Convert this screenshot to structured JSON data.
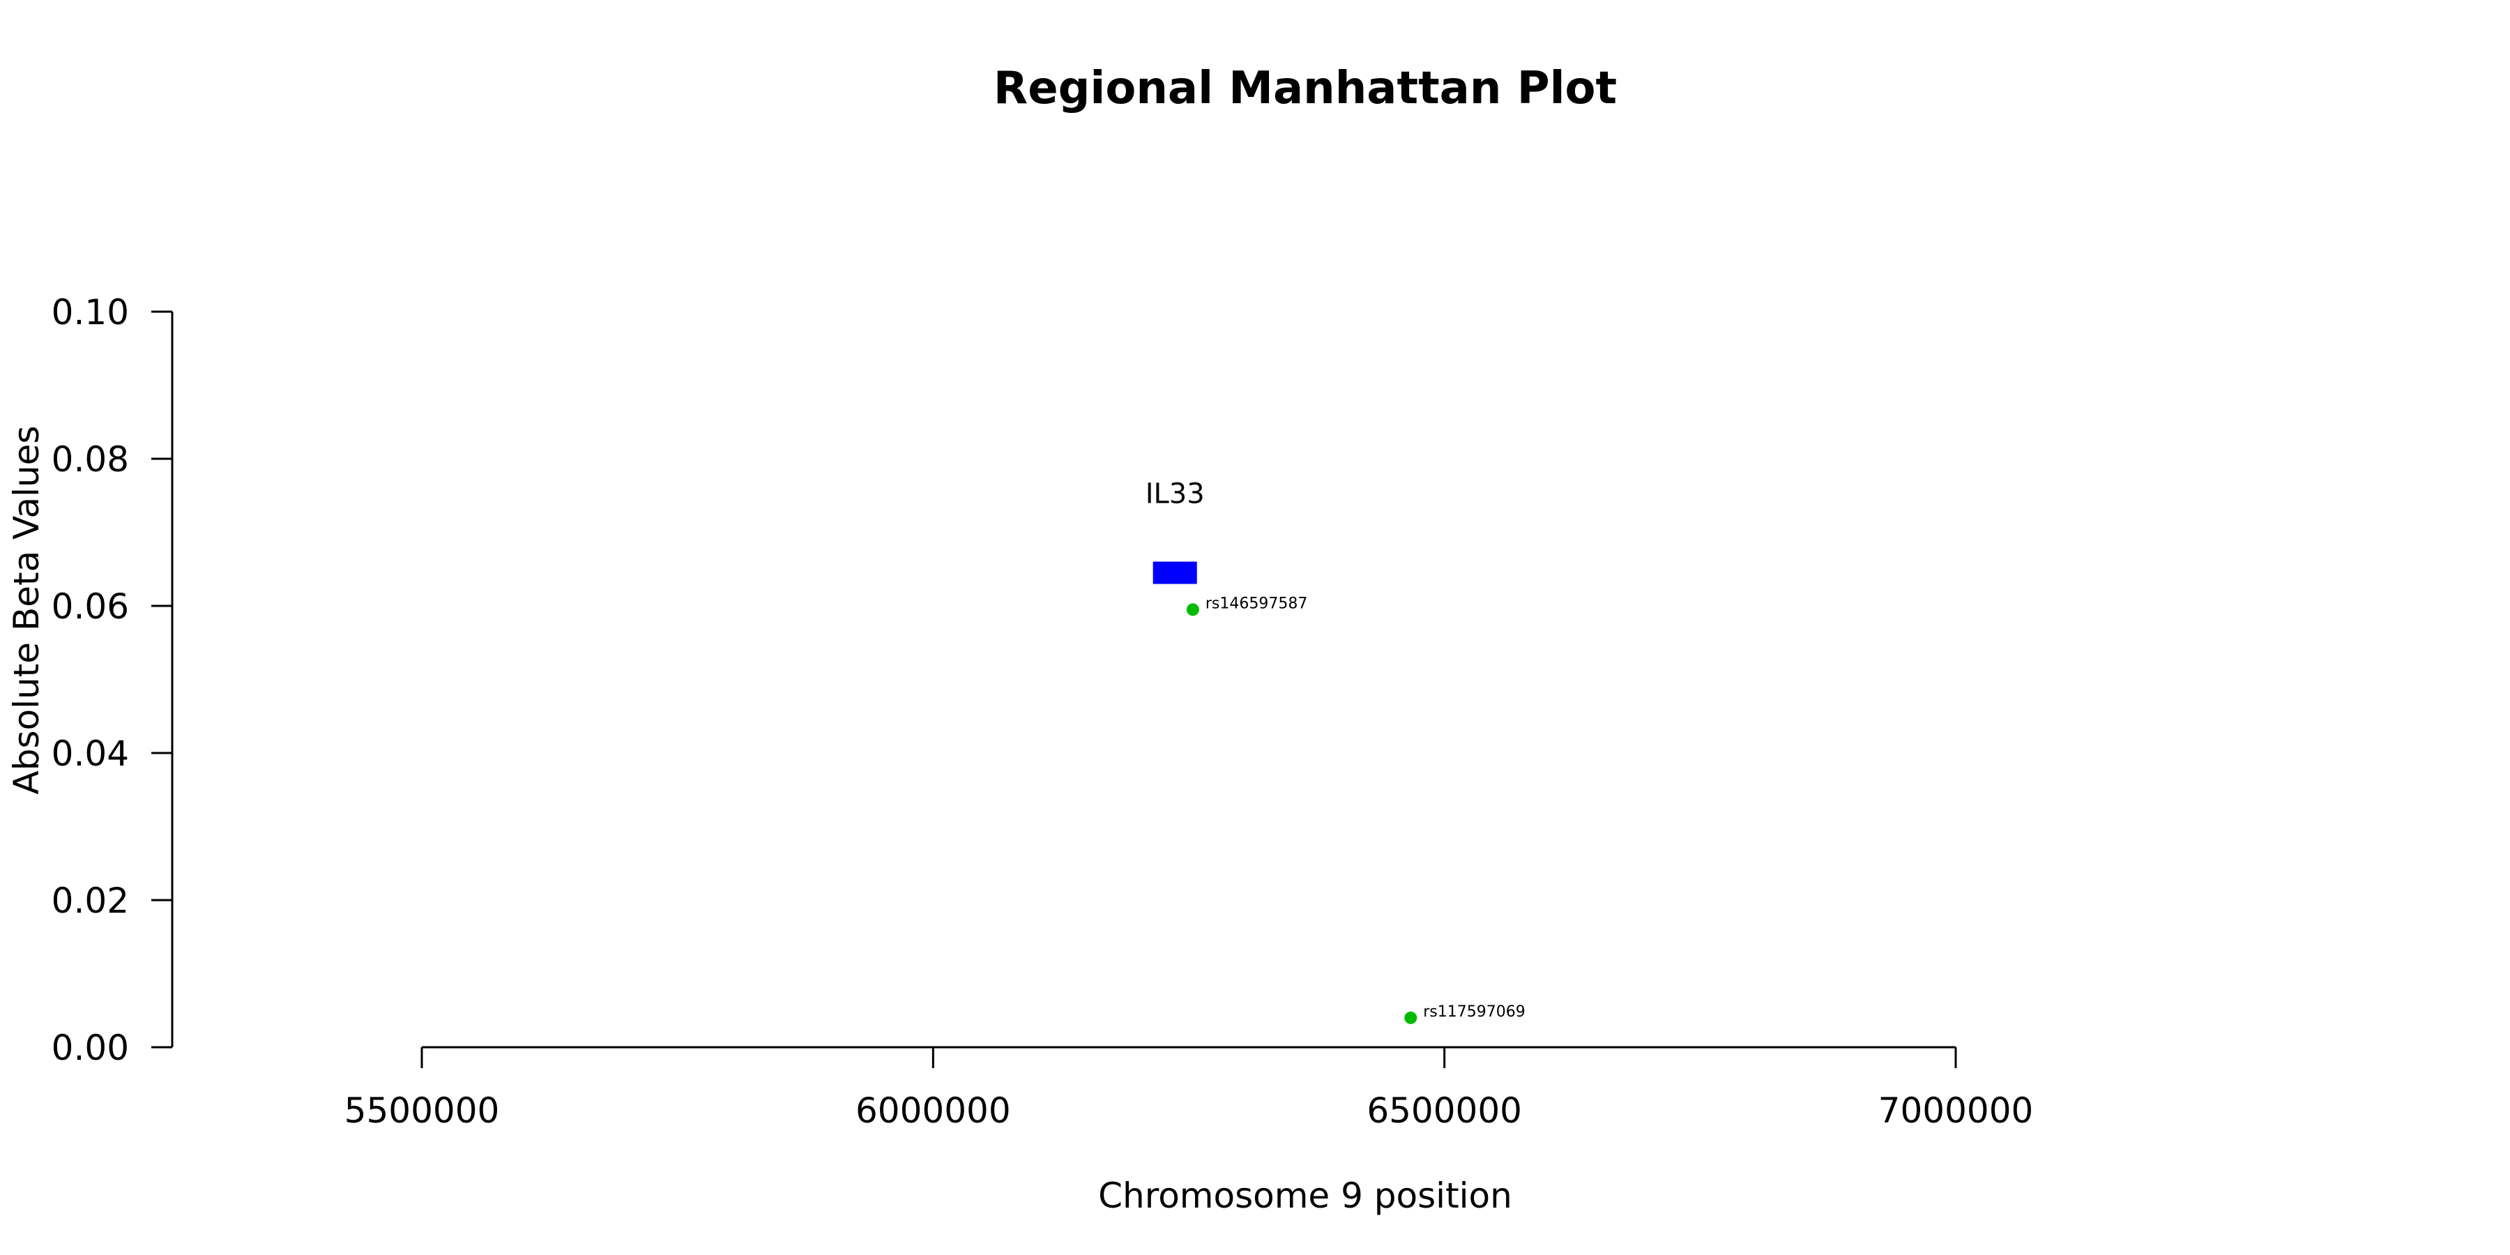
{
  "chart_data": {
    "type": "scatter",
    "title": "Regional Manhattan Plot",
    "xlabel": "Chromosome 9 position",
    "ylabel": "Absolute Beta Values",
    "xlim": [
      5500000,
      7000000
    ],
    "ylim": [
      0,
      0.1
    ],
    "x_ticks": [
      "5500000",
      "6000000",
      "6500000",
      "7000000"
    ],
    "y_ticks": [
      "0.00",
      "0.02",
      "0.04",
      "0.06",
      "0.08",
      "0.10"
    ],
    "grid": false,
    "point_color": "#00bb00",
    "points": [
      {
        "x": 6254000,
        "y": 0.0595,
        "label": "rs146597587"
      },
      {
        "x": 6467000,
        "y": 0.004,
        "label": "rs117597069"
      }
    ],
    "genes": [
      {
        "name": "IL33",
        "start": 6215000,
        "end": 6258000,
        "y": 0.0645,
        "color": "#0000ff"
      }
    ]
  }
}
